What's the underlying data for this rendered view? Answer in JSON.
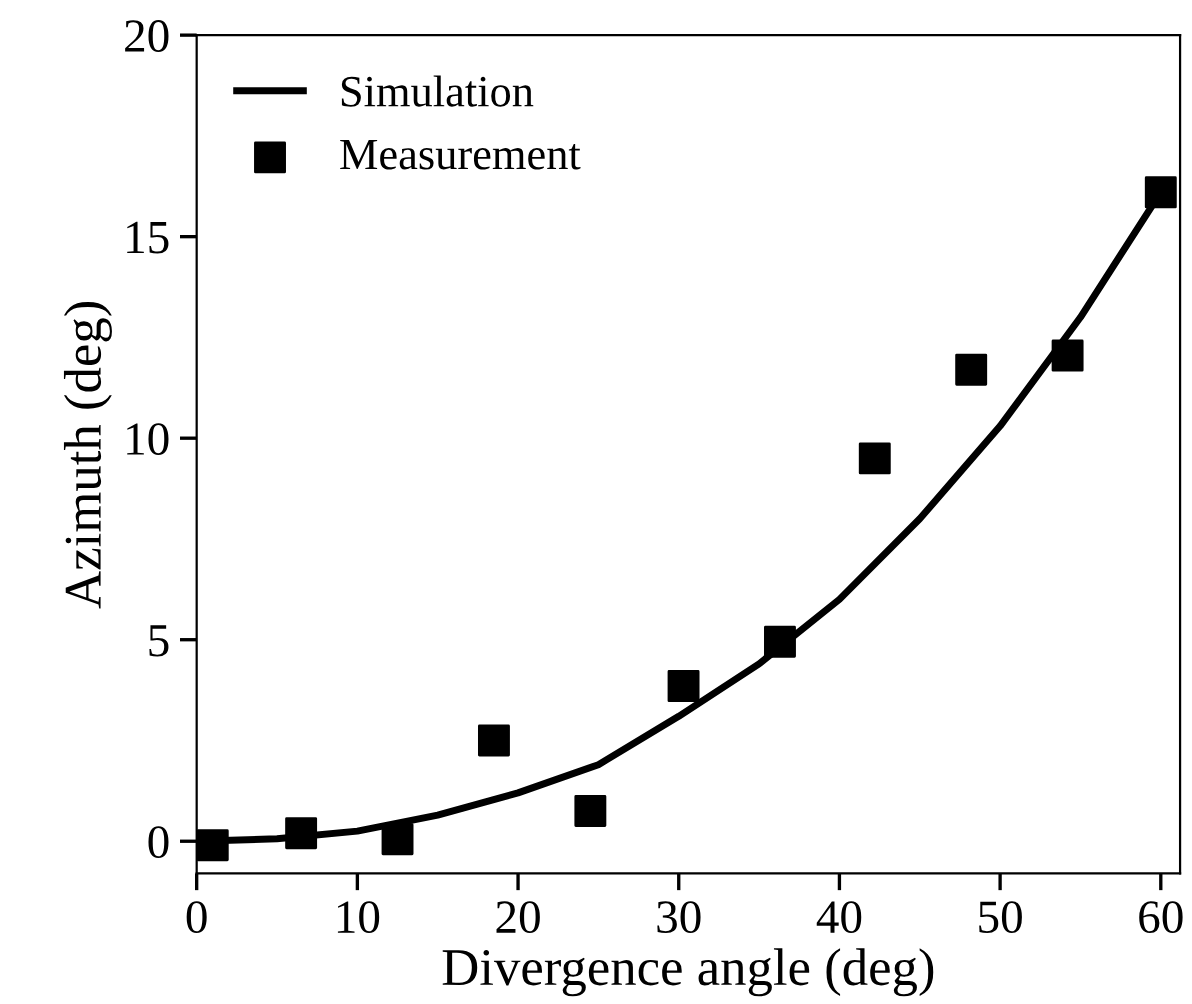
{
  "chart_data": {
    "type": "line",
    "xlabel": "Divergence angle (deg)",
    "ylabel": "Azimuth (deg)",
    "xlim": [
      0,
      61.2
    ],
    "xticks": [
      0,
      10,
      20,
      30,
      40,
      50,
      60
    ],
    "ylim": [
      -0.8,
      20
    ],
    "yticks": [
      0,
      5,
      10,
      15,
      20
    ],
    "grid": false,
    "legend": "top left",
    "series": [
      {
        "name": "Simulation",
        "color": "#000000",
        "marker": "none",
        "line_style": "solid",
        "x": [
          0,
          5,
          10,
          15,
          20,
          25,
          30,
          35,
          40,
          45,
          50,
          55,
          60
        ],
        "values": [
          0,
          0.06,
          0.25,
          0.65,
          1.2,
          1.9,
          3.1,
          4.4,
          6.0,
          8.0,
          10.3,
          13.0,
          16.1
        ]
      },
      {
        "name": "Measurement",
        "type": "scatter",
        "color": "#000000",
        "marker": "square",
        "x": [
          1,
          6.5,
          12.5,
          18.5,
          24.5,
          30.3,
          36.3,
          42.2,
          48.2,
          54.2,
          60
        ],
        "values": [
          -0.1,
          0.2,
          0.05,
          2.5,
          0.75,
          3.85,
          4.95,
          9.5,
          11.7,
          12.05,
          16.1
        ]
      }
    ]
  }
}
